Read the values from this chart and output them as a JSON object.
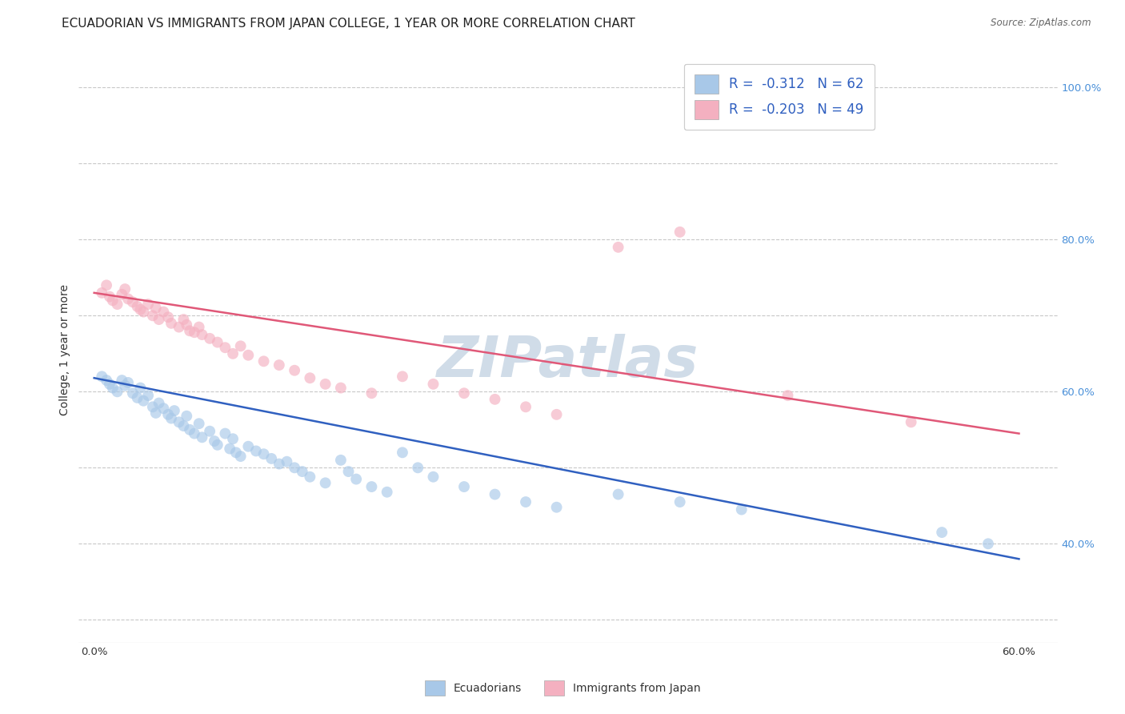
{
  "title": "ECUADORIAN VS IMMIGRANTS FROM JAPAN COLLEGE, 1 YEAR OR MORE CORRELATION CHART",
  "source": "Source: ZipAtlas.com",
  "ylabel": "College, 1 year or more",
  "watermark": "ZIPatlas",
  "legend_entries": [
    {
      "label": "Ecuadorians",
      "color_fill": "#a8c8e8",
      "color_edge": "#a8c8e8",
      "R": "-0.312",
      "N": "62"
    },
    {
      "label": "Immigrants from Japan",
      "color_fill": "#f4b0c0",
      "color_edge": "#f4b0c0",
      "R": "-0.203",
      "N": "49"
    }
  ],
  "blue_scatter_x": [
    0.005,
    0.008,
    0.01,
    0.012,
    0.015,
    0.018,
    0.02,
    0.022,
    0.025,
    0.028,
    0.03,
    0.032,
    0.035,
    0.038,
    0.04,
    0.042,
    0.045,
    0.048,
    0.05,
    0.052,
    0.055,
    0.058,
    0.06,
    0.062,
    0.065,
    0.068,
    0.07,
    0.075,
    0.078,
    0.08,
    0.085,
    0.088,
    0.09,
    0.092,
    0.095,
    0.1,
    0.105,
    0.11,
    0.115,
    0.12,
    0.125,
    0.13,
    0.135,
    0.14,
    0.15,
    0.16,
    0.165,
    0.17,
    0.18,
    0.19,
    0.2,
    0.21,
    0.22,
    0.24,
    0.26,
    0.28,
    0.3,
    0.34,
    0.38,
    0.42,
    0.55,
    0.58
  ],
  "blue_scatter_y": [
    0.62,
    0.615,
    0.61,
    0.605,
    0.6,
    0.615,
    0.608,
    0.612,
    0.598,
    0.592,
    0.605,
    0.588,
    0.595,
    0.58,
    0.572,
    0.585,
    0.578,
    0.57,
    0.565,
    0.575,
    0.56,
    0.555,
    0.568,
    0.55,
    0.545,
    0.558,
    0.54,
    0.548,
    0.535,
    0.53,
    0.545,
    0.525,
    0.538,
    0.52,
    0.515,
    0.528,
    0.522,
    0.518,
    0.512,
    0.505,
    0.508,
    0.5,
    0.495,
    0.488,
    0.48,
    0.51,
    0.495,
    0.485,
    0.475,
    0.468,
    0.52,
    0.5,
    0.488,
    0.475,
    0.465,
    0.455,
    0.448,
    0.465,
    0.455,
    0.445,
    0.415,
    0.4
  ],
  "pink_scatter_x": [
    0.005,
    0.008,
    0.01,
    0.012,
    0.015,
    0.018,
    0.02,
    0.022,
    0.025,
    0.028,
    0.03,
    0.032,
    0.035,
    0.038,
    0.04,
    0.042,
    0.045,
    0.048,
    0.05,
    0.055,
    0.058,
    0.06,
    0.062,
    0.065,
    0.068,
    0.07,
    0.075,
    0.08,
    0.085,
    0.09,
    0.095,
    0.1,
    0.11,
    0.12,
    0.13,
    0.14,
    0.15,
    0.16,
    0.18,
    0.2,
    0.22,
    0.24,
    0.26,
    0.28,
    0.3,
    0.34,
    0.38,
    0.45,
    0.53
  ],
  "pink_scatter_y": [
    0.73,
    0.74,
    0.725,
    0.72,
    0.715,
    0.728,
    0.735,
    0.722,
    0.718,
    0.712,
    0.708,
    0.705,
    0.715,
    0.7,
    0.71,
    0.695,
    0.705,
    0.698,
    0.69,
    0.685,
    0.695,
    0.688,
    0.68,
    0.678,
    0.685,
    0.675,
    0.67,
    0.665,
    0.658,
    0.65,
    0.66,
    0.648,
    0.64,
    0.635,
    0.628,
    0.618,
    0.61,
    0.605,
    0.598,
    0.62,
    0.61,
    0.598,
    0.59,
    0.58,
    0.57,
    0.79,
    0.81,
    0.595,
    0.56
  ],
  "blue_line_x": [
    0.0,
    0.6
  ],
  "blue_line_y": [
    0.618,
    0.38
  ],
  "pink_line_x": [
    0.0,
    0.6
  ],
  "pink_line_y": [
    0.73,
    0.545
  ],
  "xlim": [
    -0.01,
    0.625
  ],
  "ylim": [
    0.27,
    1.04
  ],
  "x_tick_positions": [
    0.0,
    0.1,
    0.2,
    0.3,
    0.4,
    0.5,
    0.6
  ],
  "x_tick_labels": [
    "0.0%",
    "",
    "",
    "",
    "",
    "",
    "60.0%"
  ],
  "y_tick_positions": [
    0.3,
    0.4,
    0.5,
    0.6,
    0.7,
    0.8,
    0.9,
    1.0
  ],
  "y_right_labels": [
    "",
    "40.0%",
    "",
    "60.0%",
    "",
    "80.0%",
    "",
    "100.0%"
  ],
  "scatter_size": 100,
  "scatter_alpha": 0.65,
  "blue_color": "#a8c8e8",
  "pink_color": "#f4b0c0",
  "blue_line_color": "#3060c0",
  "pink_line_color": "#e05878",
  "grid_color": "#c8c8c8",
  "bg_color": "#ffffff",
  "title_fontsize": 11,
  "ylabel_fontsize": 10,
  "tick_fontsize": 9.5,
  "watermark_fontsize": 52,
  "watermark_color": "#d0dce8",
  "source_text": "Source: ZipAtlas.com"
}
